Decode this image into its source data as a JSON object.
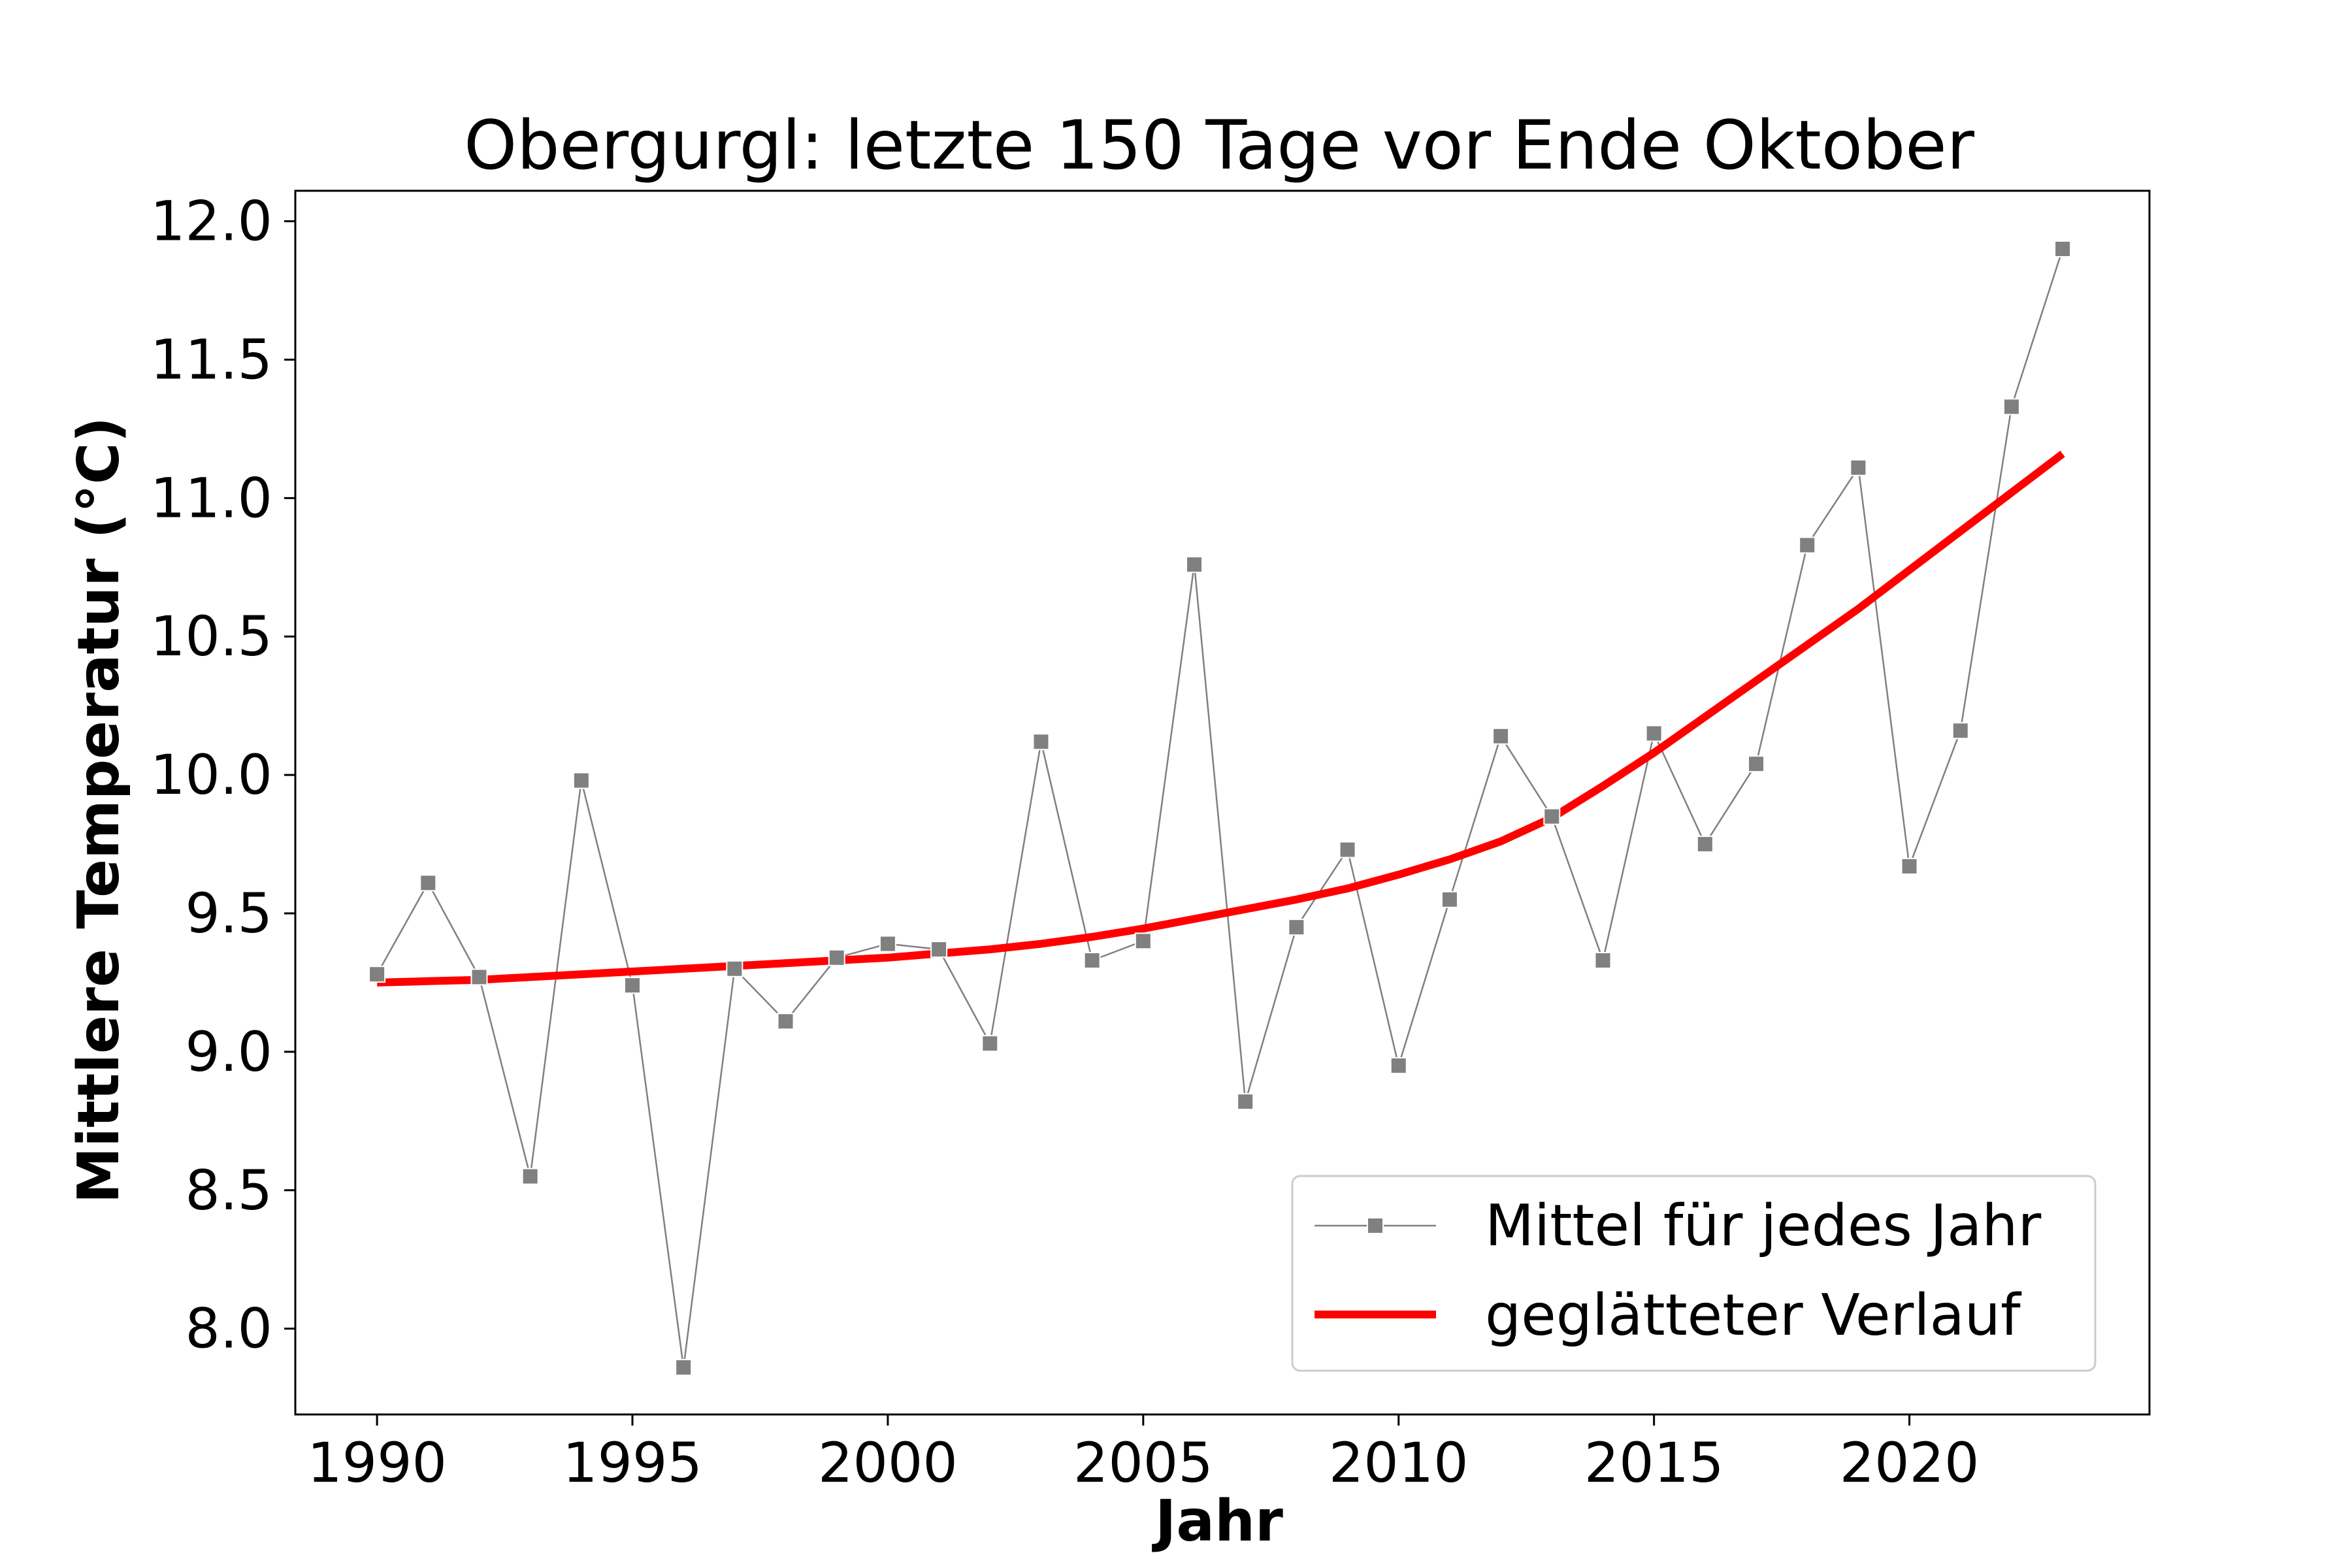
{
  "chart_data": {
    "type": "line",
    "title": "Obergurgl: letzte 150 Tage vor Ende Oktober",
    "xlabel": "Jahr",
    "ylabel": "Mittlere Temperatur (°C)",
    "xlim": [
      1988.4,
      2024.7
    ],
    "ylim": [
      7.69,
      12.11
    ],
    "xticks": [
      1990,
      1995,
      2000,
      2005,
      2010,
      2015,
      2020
    ],
    "yticks": [
      8.0,
      8.5,
      9.0,
      9.5,
      10.0,
      10.5,
      11.0,
      11.5,
      12.0
    ],
    "ytick_labels": [
      "8.0",
      "8.5",
      "9.0",
      "9.5",
      "10.0",
      "10.5",
      "11.0",
      "11.5",
      "12.0"
    ],
    "grid": false,
    "legend_position": "lower-right",
    "series": [
      {
        "name": "Mittel für jedes Jahr",
        "style": "line-with-square-markers",
        "color": "#808080",
        "x": [
          1990,
          1991,
          1992,
          1993,
          1994,
          1995,
          1996,
          1997,
          1998,
          1999,
          2000,
          2001,
          2002,
          2003,
          2004,
          2005,
          2006,
          2007,
          2008,
          2009,
          2010,
          2011,
          2012,
          2013,
          2014,
          2015,
          2016,
          2017,
          2018,
          2019,
          2020,
          2021,
          2022,
          2023
        ],
        "values": [
          9.28,
          9.61,
          9.27,
          8.55,
          9.98,
          9.24,
          7.86,
          9.3,
          9.11,
          9.34,
          9.39,
          9.37,
          9.03,
          10.12,
          9.33,
          9.4,
          10.76,
          8.82,
          9.45,
          9.73,
          8.95,
          9.55,
          10.14,
          9.85,
          9.33,
          10.15,
          9.75,
          10.04,
          10.83,
          11.11,
          9.67,
          10.16,
          11.33,
          11.9
        ]
      },
      {
        "name": "geglätteter Verlauf",
        "style": "line",
        "color": "#ff0000",
        "x": [
          1990,
          1991,
          1992,
          1993,
          1994,
          1995,
          1996,
          1997,
          1998,
          1999,
          2000,
          2001,
          2002,
          2003,
          2004,
          2005,
          2006,
          2007,
          2008,
          2009,
          2010,
          2011,
          2012,
          2013,
          2014,
          2015,
          2016,
          2017,
          2018,
          2019,
          2020,
          2021,
          2022,
          2023
        ],
        "values": [
          9.25,
          9.255,
          9.26,
          9.27,
          9.28,
          9.29,
          9.3,
          9.31,
          9.32,
          9.33,
          9.34,
          9.355,
          9.37,
          9.39,
          9.415,
          9.445,
          9.48,
          9.515,
          9.55,
          9.59,
          9.64,
          9.695,
          9.76,
          9.845,
          9.96,
          10.08,
          10.21,
          10.34,
          10.47,
          10.6,
          10.74,
          10.88,
          11.02,
          11.16
        ]
      }
    ]
  }
}
